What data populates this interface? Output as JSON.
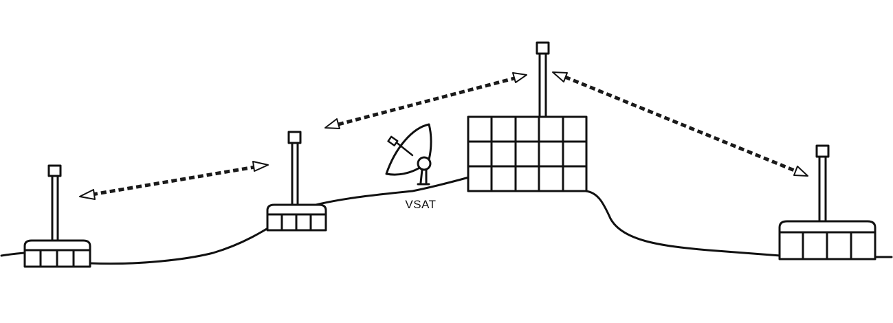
{
  "diagram": {
    "labels": {
      "vsat": "VSAT"
    },
    "colors": {
      "line": "#111111",
      "background": "#ffffff"
    },
    "nodes": [
      {
        "id": "left-hut",
        "kind": "small-shelter-with-mast"
      },
      {
        "id": "mid-hut",
        "kind": "small-shelter-with-mast"
      },
      {
        "id": "vsat-dish",
        "kind": "satellite-dish",
        "label_ref": "vsat"
      },
      {
        "id": "solar-array",
        "kind": "solar-panel-grid-with-mast"
      },
      {
        "id": "right-hut",
        "kind": "shelter-with-mast"
      }
    ],
    "links": [
      {
        "from": "left-hut",
        "to": "mid-hut",
        "style": "dashed",
        "bidirectional": true
      },
      {
        "from": "mid-hut",
        "to": "solar-array",
        "style": "dashed",
        "bidirectional": true
      },
      {
        "from": "solar-array",
        "to": "right-hut",
        "style": "dashed",
        "bidirectional": true
      }
    ]
  }
}
